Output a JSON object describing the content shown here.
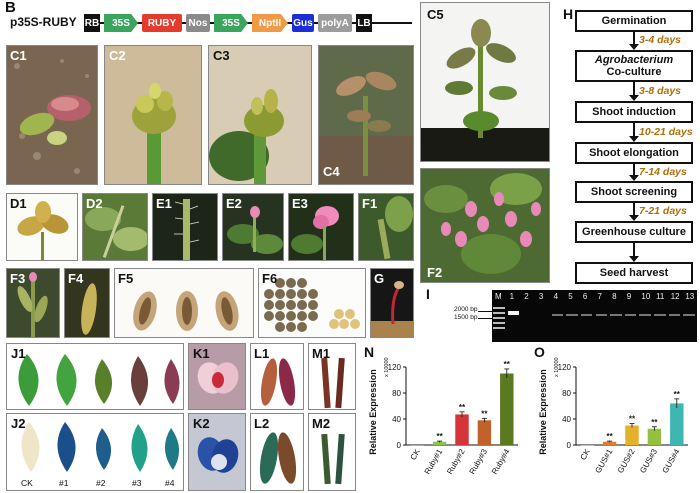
{
  "construct": {
    "panel_label": "B",
    "name": "p35S-RUBY",
    "elements": [
      {
        "label": "RB",
        "color": "#111111",
        "text_color": "#ffffff"
      },
      {
        "label": "35S",
        "color": "#3aa55d",
        "text_color": "#ffffff"
      },
      {
        "label": "RUBY",
        "color": "#e53b2c",
        "text_color": "#ffffff"
      },
      {
        "label": "Nos",
        "color": "#8a8a8a",
        "text_color": "#ffffff"
      },
      {
        "label": "35S",
        "color": "#3aa55d",
        "text_color": "#ffffff"
      },
      {
        "label": "NptII",
        "color": "#f19a46",
        "text_color": "#ffffff"
      },
      {
        "label": "Gus",
        "color": "#1c2fd6",
        "text_color": "#ffffff"
      },
      {
        "label": "polyA",
        "color": "#9c9c9c",
        "text_color": "#ffffff"
      },
      {
        "label": "LB",
        "color": "#111111",
        "text_color": "#ffffff"
      }
    ]
  },
  "photo_labels": {
    "C1": "C1",
    "C2": "C2",
    "C3": "C3",
    "C4": "C4",
    "C5": "C5",
    "D1": "D1",
    "D2": "D2",
    "E1": "E1",
    "E2": "E2",
    "E3": "E3",
    "F1": "F1",
    "F2": "F2",
    "F3": "F3",
    "F4": "F4",
    "F5": "F5",
    "F6": "F6",
    "G": "G",
    "I": "I",
    "J1": "J1",
    "J2": "J2",
    "K1": "K1",
    "K2": "K2",
    "L1": "L1",
    "L2": "L2",
    "M1": "M1",
    "M2": "M2"
  },
  "j2_leaf_labels": [
    "CK",
    "#1",
    "#2",
    "#3",
    "#4"
  ],
  "flowchart": {
    "panel_label": "H",
    "steps": [
      {
        "line1": "Germination",
        "line2": "",
        "italic1": false
      },
      {
        "line1": "Agrobacterium",
        "line2": "Co-culture",
        "italic1": true
      },
      {
        "line1": "Shoot induction",
        "line2": "",
        "italic1": false
      },
      {
        "line1": "Shoot elongation",
        "line2": "",
        "italic1": false
      },
      {
        "line1": "Shoot screening",
        "line2": "",
        "italic1": false
      },
      {
        "line1": "Greenhouse culture",
        "line2": "",
        "italic1": false
      },
      {
        "line1": "Seed harvest",
        "line2": "",
        "italic1": false
      }
    ],
    "durations": [
      "3-4 days",
      "3-8 days",
      "10-21 days",
      "7-14 days",
      "7-21 days",
      ""
    ]
  },
  "gel": {
    "lanes": [
      "M",
      "1",
      "2",
      "3",
      "4",
      "5",
      "6",
      "7",
      "8",
      "9",
      "10",
      "11",
      "12",
      "13"
    ],
    "marker_labels": [
      "2000 bp",
      "1500 bp"
    ]
  },
  "chart_data": [
    {
      "panel_label": "N",
      "type": "bar",
      "categories": [
        "CK",
        "Ruby#1",
        "Ruby#2",
        "Ruby#3",
        "Ruby#4"
      ],
      "values": [
        0,
        5,
        47,
        38,
        110
      ],
      "errors": [
        0,
        1,
        4,
        3,
        7
      ],
      "significance": [
        "",
        "**",
        "**",
        "**",
        "**"
      ],
      "colors": [
        "#6a8a2a",
        "#8fc24a",
        "#d3353a",
        "#c0622a",
        "#5b7a1f"
      ],
      "ylabel": "Relative Expression",
      "yscale_note": "x 10000",
      "ylim": [
        0,
        120
      ],
      "yticks": [
        0,
        40,
        80,
        120
      ]
    },
    {
      "panel_label": "O",
      "type": "bar",
      "categories": [
        "CK",
        "GUS#1",
        "GUS#2",
        "GUS#3",
        "GUS#4"
      ],
      "values": [
        0,
        5,
        30,
        25,
        64
      ],
      "errors": [
        0,
        1,
        3,
        3,
        7
      ],
      "significance": [
        "",
        "**",
        "**",
        "**",
        "**"
      ],
      "colors": [
        "#9a9a9a",
        "#e07b30",
        "#e3b22a",
        "#93c03f",
        "#3fb7b0"
      ],
      "ylabel": "Relative Expression",
      "yscale_note": "x 10000",
      "ylim": [
        0,
        120
      ],
      "yticks": [
        0,
        40,
        80,
        120
      ]
    }
  ]
}
